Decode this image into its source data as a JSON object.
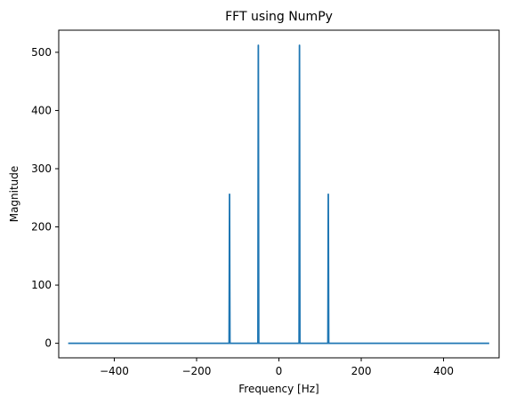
{
  "chart_data": {
    "type": "line",
    "title": "FFT using NumPy",
    "xlabel": "Frequency [Hz]",
    "ylabel": "Magnitude",
    "xlim": [
      -535,
      535
    ],
    "ylim": [
      -25,
      538
    ],
    "xticks": [
      -400,
      -200,
      0,
      200,
      400
    ],
    "yticks": [
      0,
      100,
      200,
      300,
      400,
      500
    ],
    "grid": false,
    "color": "#1f77b4",
    "series": [
      {
        "x": [
          -512,
          -121,
          -120,
          -119,
          -51,
          -50,
          -49,
          49,
          50,
          51,
          119,
          120,
          121,
          511
        ],
        "y": [
          0,
          0,
          256,
          0,
          0,
          512,
          0,
          0,
          512,
          0,
          0,
          256,
          0,
          0
        ]
      }
    ]
  }
}
